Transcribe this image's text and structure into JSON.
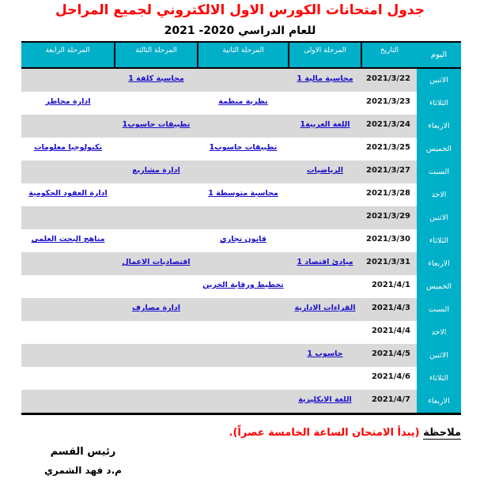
{
  "title": "جدول امتحانات الكورس الاول الالكتروني لجميع المراحل",
  "subtitle": "للعام الدراسي 2020- 2021",
  "colors": {
    "title": "#ff0000",
    "header_bg": "#00afc8",
    "row_alt": "#d9d9d9",
    "link": "#1a0dcc"
  },
  "table": {
    "headers": [
      "اليوم",
      "التاريخ",
      "المرحلة الاولى",
      "المرحلة الثانية",
      "المرحلة الثالثة",
      "المرحلة الرابعة"
    ],
    "rows": [
      [
        "الاثنين",
        "2021/3/22",
        "محاسبة مالية 1",
        "",
        "محاسبة كلفة 1",
        ""
      ],
      [
        "الثلاثاء",
        "2021/3/23",
        "",
        "نظرية منظمة",
        "",
        "ادارة مخاطر"
      ],
      [
        "الاربعاء",
        "2021/3/24",
        "اللغة العربية1",
        "",
        "تطبيقات حاسوب1",
        ""
      ],
      [
        "الخميس",
        "2021/3/25",
        "",
        "تطبيقات حاسوب1",
        "",
        "تكنولوجيا معلومات"
      ],
      [
        "السبت",
        "2021/3/27",
        "الرياضيات",
        "",
        "ادارة مشاريع",
        ""
      ],
      [
        "الاحد",
        "2021/3/28",
        "",
        "محاسبة متوسطة 1",
        "",
        "ادارة العقود الحكومية"
      ],
      [
        "الاثنين",
        "2021/3/29",
        "",
        "",
        "",
        ""
      ],
      [
        "الثلاثاء",
        "2021/3/30",
        "",
        "قانون تجاري",
        "",
        "مناهج البحث العلمي"
      ],
      [
        "الاربعاء",
        "2021/3/31",
        "مبادئ اقتصاد 1",
        "",
        "اقتصاديات الاعمال",
        ""
      ],
      [
        "الخميس",
        "2021/4/1",
        "",
        "تخطيط ورقابة الخزين",
        "",
        ""
      ],
      [
        "السبت",
        "2021/4/3",
        "القراءات الادارية",
        "",
        "ادارة مصارف",
        ""
      ],
      [
        "الاحد",
        "2021/4/4",
        "",
        "",
        "",
        ""
      ],
      [
        "الاثنين",
        "2021/4/5",
        "حاسوب 1",
        "",
        "",
        ""
      ],
      [
        "الثلاثاء",
        "2021/4/6",
        "",
        "",
        "",
        ""
      ],
      [
        "الاربعاء",
        "2021/4/7",
        "اللغة الانكليزية",
        "",
        "",
        ""
      ]
    ]
  },
  "note": {
    "label": "ملاحظة",
    "text": " (يبدأ الامتحان الساعة الخامسة عصراً)."
  },
  "signature": {
    "title": "رئيس القسم",
    "name": "م.د فهد الشمري"
  }
}
